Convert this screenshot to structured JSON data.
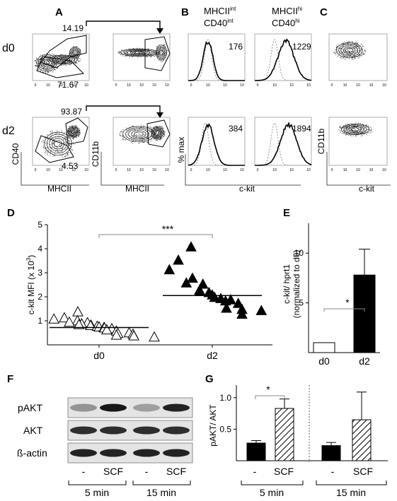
{
  "panels": {
    "A": {
      "letter": "A",
      "rows": [
        "d0",
        "d2"
      ],
      "gate_values": {
        "d0_top": "14.19",
        "d0_bottom": "71.67",
        "d2_top": "93.87",
        "d2_bottom": "4.53"
      },
      "axis_labels": {
        "y1": "CD40",
        "y2": "CD11b",
        "x": "MHCII"
      }
    },
    "B": {
      "letter": "B",
      "col1_title": {
        "line1": "MHCII",
        "sup1": "int",
        "line2": "CD40",
        "sup2": "int"
      },
      "col2_title": {
        "line1": "MHCII",
        "sup1": "hi",
        "line2": "CD40",
        "sup2": "hi"
      },
      "mfi": {
        "d0_int": "176",
        "d0_hi": "1229",
        "d2_int": "384",
        "d2_hi": "1894"
      },
      "ylabel": "% max",
      "xlabel": "c-kit"
    },
    "C": {
      "letter": "C",
      "ylabel": "CD11b",
      "xlabel": "c-kit"
    },
    "D": {
      "letter": "D",
      "ylabel": "c-kit MFI (x 10",
      "ylabel_sup": "3",
      "ylabel_end": ")",
      "sig": "***"
    },
    "E": {
      "letter": "E",
      "ylabel_line1": "c-kit/ hprt1",
      "ylabel_line2": "(normalized to d0)",
      "sig": "*"
    },
    "F": {
      "letter": "F",
      "rows": [
        "pAKT",
        "AKT",
        "ß-actin"
      ],
      "lanes": [
        "-",
        "SCF",
        "-",
        "SCF"
      ],
      "times": [
        "5 min",
        "15 min"
      ]
    },
    "G": {
      "letter": "G",
      "ylabel": "pAKT/ AKT",
      "sig": "*",
      "lanes": [
        "-",
        "SCF",
        "-",
        "SCF"
      ],
      "times": [
        "5 min",
        "15 min"
      ]
    }
  },
  "tick_labels": {
    "flow": [
      "0",
      "10",
      "10",
      "10",
      "10"
    ],
    "flow_sup": [
      "2",
      "3",
      "4",
      "5"
    ]
  },
  "chart_data": [
    {
      "type": "scatter",
      "panel": "D",
      "categories": [
        "d0",
        "d2"
      ],
      "ylim": [
        0,
        5
      ],
      "yticks": [
        1,
        2,
        3,
        4,
        5
      ],
      "series": [
        {
          "name": "d0",
          "marker": "open-triangle",
          "mean": 0.72,
          "values": [
            1.35,
            1.1,
            1.05,
            0.98,
            0.92,
            0.9,
            0.85,
            0.82,
            0.8,
            0.78,
            0.75,
            0.72,
            0.7,
            0.68,
            0.65,
            0.6,
            0.55,
            0.48,
            0.45,
            0.42,
            0.38,
            0.35,
            0.3
          ]
        },
        {
          "name": "d2",
          "marker": "filled-triangle",
          "mean": 2.05,
          "values": [
            4.05,
            3.5,
            3.1,
            2.75,
            2.55,
            2.5,
            2.25,
            2.2,
            2.15,
            2.05,
            1.95,
            1.9,
            1.85,
            1.8,
            1.7,
            1.5,
            1.45,
            1.4,
            1.25
          ]
        }
      ]
    },
    {
      "type": "bar",
      "panel": "E",
      "categories": [
        "d0",
        "d2"
      ],
      "values": [
        1.0,
        7.8
      ],
      "error": [
        0,
        2.6
      ],
      "ylim": [
        0,
        13
      ],
      "yticks": [
        5,
        10
      ],
      "fills": [
        "#ffffff",
        "#000000"
      ]
    },
    {
      "type": "bar",
      "panel": "G",
      "categories": [
        "-",
        "SCF",
        "-",
        "SCF"
      ],
      "values": [
        0.28,
        0.83,
        0.24,
        0.65
      ],
      "error": [
        0.04,
        0.15,
        0.05,
        0.44
      ],
      "ylim": [
        0,
        1.2
      ],
      "yticks": [
        0.5,
        1.0
      ],
      "ytick_labels": [
        "0.5",
        "1.0"
      ],
      "patterns": [
        "solid",
        "hatch",
        "solid",
        "hatch"
      ]
    }
  ]
}
